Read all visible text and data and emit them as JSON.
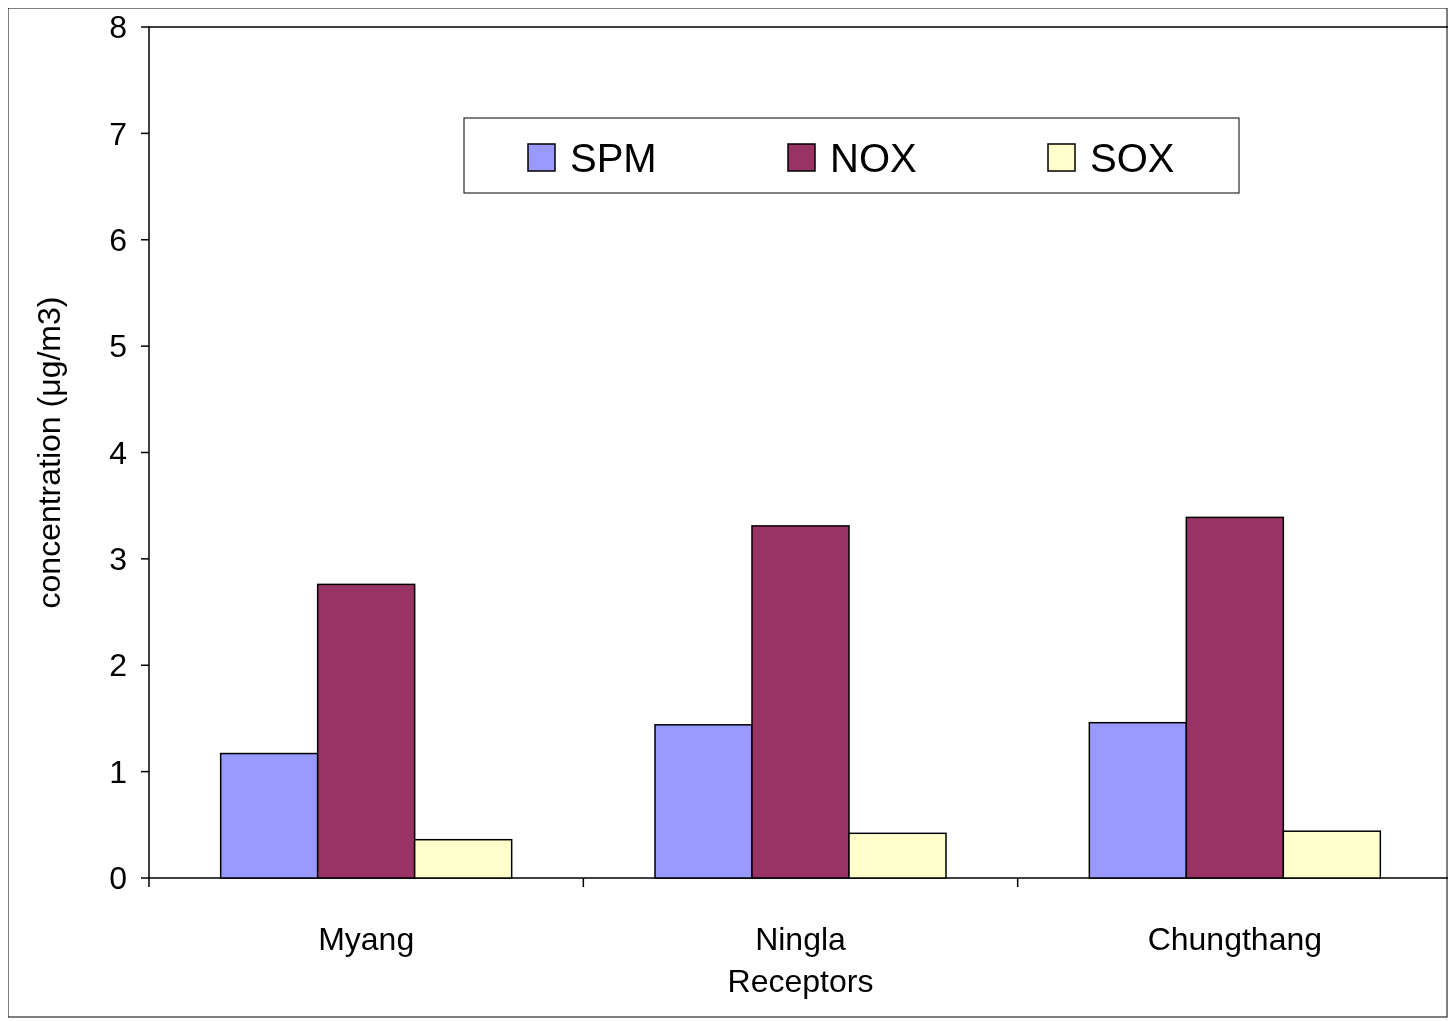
{
  "chart_data": {
    "type": "bar",
    "xlabel": "Receptors",
    "ylabel": "concentration (μg/m3)",
    "categories": [
      "Myang",
      "Ningla",
      "Chungthang"
    ],
    "series": [
      {
        "name": "SPM",
        "color": "#9999ff",
        "values": [
          1.17,
          1.44,
          1.46
        ]
      },
      {
        "name": "NOX",
        "color": "#993366",
        "values": [
          2.76,
          3.31,
          3.39
        ]
      },
      {
        "name": "SOX",
        "color": "#ffffcc",
        "values": [
          0.36,
          0.42,
          0.44
        ]
      }
    ],
    "ylim": [
      0,
      8
    ],
    "yticks": [
      0,
      1,
      2,
      3,
      4,
      5,
      6,
      7,
      8
    ],
    "grid": false,
    "legend": "top"
  }
}
